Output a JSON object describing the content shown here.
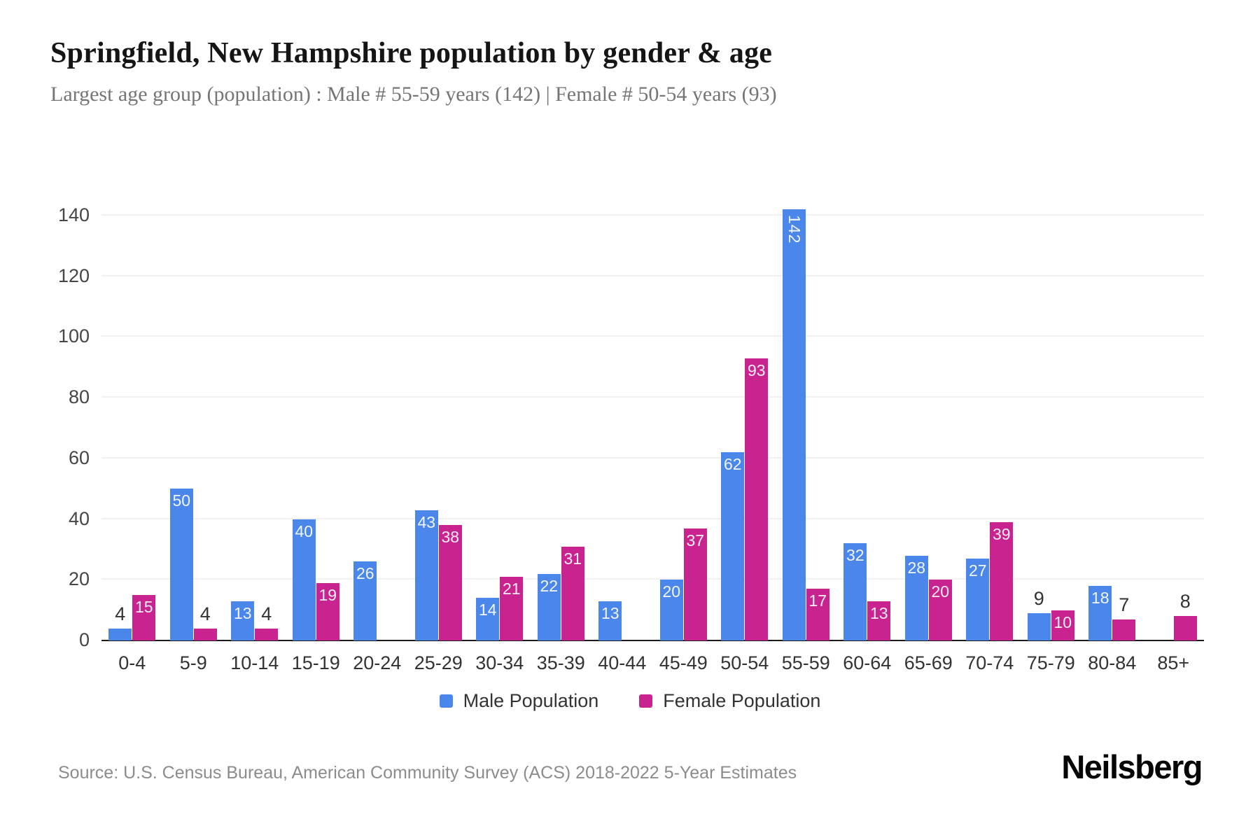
{
  "header": {
    "title": "Springfield, New Hampshire population by gender & age",
    "subtitle": "Largest age group (population) : Male # 55-59 years (142) | Female # 50-54 years (93)"
  },
  "legend": {
    "items": [
      {
        "label": "Male Population",
        "color": "#4b87ea"
      },
      {
        "label": "Female Population",
        "color": "#c9238f"
      }
    ]
  },
  "footer": {
    "source": "Source: U.S. Census Bureau, American Community Survey (ACS) 2018-2022 5-Year Estimates",
    "brand": "Neilsberg"
  },
  "chart_data": {
    "type": "bar",
    "title": "Springfield, New Hampshire population by gender & age",
    "categories": [
      "0-4",
      "5-9",
      "10-14",
      "15-19",
      "20-24",
      "25-29",
      "30-34",
      "35-39",
      "40-44",
      "45-49",
      "50-54",
      "55-59",
      "60-64",
      "65-69",
      "70-74",
      "75-79",
      "80-84",
      "85+"
    ],
    "series": [
      {
        "name": "Male Population",
        "color": "#4b87ea",
        "values": [
          4,
          50,
          13,
          40,
          26,
          43,
          14,
          22,
          13,
          20,
          62,
          142,
          32,
          28,
          27,
          9,
          18,
          0
        ]
      },
      {
        "name": "Female Population",
        "color": "#c9238f",
        "values": [
          15,
          4,
          4,
          19,
          0,
          38,
          21,
          31,
          0,
          37,
          93,
          17,
          13,
          20,
          39,
          10,
          7,
          8
        ]
      }
    ],
    "xlabel": "",
    "ylabel": "",
    "ylim": [
      0,
      140
    ],
    "yticks": [
      0,
      20,
      40,
      60,
      80,
      100,
      120,
      140
    ],
    "grid": true,
    "legend_position": "bottom",
    "gridline_color": "#f1f1f1",
    "axis_color": "#1c1c1c",
    "bar_label_inside_color": "#ffffff",
    "bar_label_outside_color": "#333333"
  }
}
